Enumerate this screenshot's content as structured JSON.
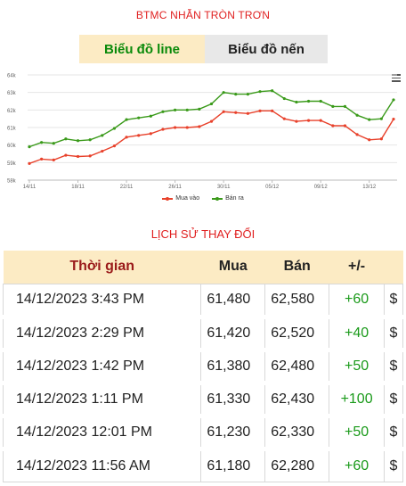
{
  "page_title": "BTMC NHẪN TRÒN TRƠN",
  "tabs": [
    {
      "label": "Biểu đồ line",
      "active": true
    },
    {
      "label": "Biểu đồ nến",
      "active": false
    }
  ],
  "chart_menu_icon": "hamburger-menu-icon",
  "chart_data": {
    "type": "line",
    "title": "",
    "xlabel": "",
    "ylabel": "",
    "ylim": [
      58000,
      64000
    ],
    "y_ticks": [
      "58k",
      "59k",
      "60k",
      "61k",
      "62k",
      "63k",
      "64k"
    ],
    "x_tick_labels": [
      "14/11",
      "18/11",
      "22/11",
      "26/11",
      "30/11",
      "05/12",
      "09/12",
      "13/12"
    ],
    "x_tick_index": [
      0,
      4,
      8,
      12,
      16,
      20,
      24,
      28
    ],
    "grid": true,
    "legend_position": "bottom",
    "series": [
      {
        "name": "Mua vào",
        "color": "#e8412b",
        "values": [
          58950,
          59200,
          59150,
          59420,
          59350,
          59380,
          59650,
          59950,
          60450,
          60550,
          60650,
          60900,
          61000,
          61000,
          61050,
          61350,
          61900,
          61850,
          61800,
          61950,
          61950,
          61500,
          61350,
          61400,
          61400,
          61100,
          61100,
          60600,
          60300,
          60350,
          61480
        ]
      },
      {
        "name": "Bán ra",
        "color": "#3a9a1a",
        "values": [
          59900,
          60150,
          60100,
          60350,
          60250,
          60300,
          60550,
          60950,
          61450,
          61550,
          61650,
          61900,
          62000,
          62000,
          62050,
          62350,
          63000,
          62900,
          62900,
          63050,
          63100,
          62650,
          62450,
          62500,
          62500,
          62200,
          62200,
          61700,
          61450,
          61500,
          62580
        ]
      }
    ]
  },
  "legend": {
    "buy_label": "Mua vào",
    "sell_label": "Bán ra"
  },
  "history_title": "LỊCH SỬ THAY ĐỔI",
  "table": {
    "headers": {
      "time": "Thời gian",
      "buy": "Mua",
      "sell": "Bán",
      "change": "+/-",
      "extra": ""
    },
    "rows": [
      {
        "time": "14/12/2023 3:43 PM",
        "buy": "61,480",
        "sell": "62,580",
        "change": "+60",
        "extra": "$"
      },
      {
        "time": "14/12/2023 2:29 PM",
        "buy": "61,420",
        "sell": "62,520",
        "change": "+40",
        "extra": "$"
      },
      {
        "time": "14/12/2023 1:42 PM",
        "buy": "61,380",
        "sell": "62,480",
        "change": "+50",
        "extra": "$"
      },
      {
        "time": "14/12/2023 1:11 PM",
        "buy": "61,330",
        "sell": "62,430",
        "change": "+100",
        "extra": "$"
      },
      {
        "time": "14/12/2023 12:01 PM",
        "buy": "61,230",
        "sell": "62,330",
        "change": "+50",
        "extra": "$"
      },
      {
        "time": "14/12/2023 11:56 AM",
        "buy": "61,180",
        "sell": "62,280",
        "change": "+60",
        "extra": "$"
      }
    ]
  }
}
